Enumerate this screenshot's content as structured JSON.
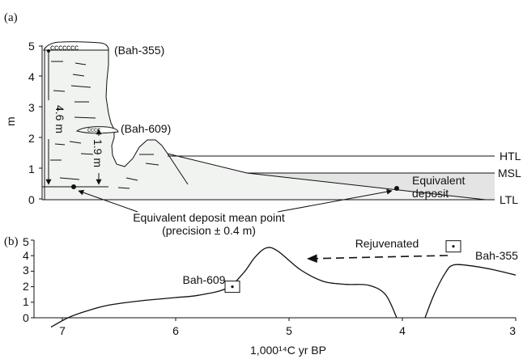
{
  "panel_a": {
    "label": "(a)",
    "y_unit": "m",
    "y_ticks": [
      "0",
      "1",
      "2",
      "3",
      "4",
      "5"
    ],
    "sample_top": "(Bah-355)",
    "sample_mid": "(Bah-609)",
    "measure_long": "4.6 m",
    "measure_short": "1.9 m",
    "levels": {
      "htl": "HTL",
      "msl": "MSL",
      "ltl": "LTL"
    },
    "equivalent_deposit_line1": "Equivalent",
    "equivalent_deposit_line2": "deposit",
    "mean_point_line1": "Equivalent deposit mean point",
    "mean_point_line2": "(precision ± 0.4 m)"
  },
  "panel_b": {
    "label": "(b)",
    "x_ticks": [
      "7",
      "6",
      "5",
      "4",
      "3"
    ],
    "y_ticks": [
      "0",
      "1",
      "2",
      "3",
      "4",
      "5"
    ],
    "x_label": "1,000¹⁴C yr BP",
    "sample_a": "Bah-609",
    "sample_b": "Bah-355",
    "arrow_label": "Rejuvenated"
  },
  "chart_data": {
    "type": "line",
    "xlabel": "1,000¹⁴C yr BP",
    "ylabel": "",
    "xlim": [
      7.2,
      3.0
    ],
    "ylim": [
      0,
      5
    ],
    "x_ticks": [
      7,
      6,
      5,
      4,
      3
    ],
    "y_ticks": [
      0,
      1,
      2,
      3,
      4,
      5
    ],
    "series": [
      {
        "values_xy": [
          [
            7.1,
            -0.6
          ],
          [
            6.95,
            0.0
          ],
          [
            6.8,
            0.4
          ],
          [
            6.6,
            0.8
          ],
          [
            6.3,
            1.1
          ],
          [
            6.0,
            1.3
          ],
          [
            5.8,
            1.45
          ],
          [
            5.55,
            1.9
          ],
          [
            5.4,
            2.9
          ],
          [
            5.3,
            3.9
          ],
          [
            5.2,
            4.5
          ],
          [
            5.1,
            4.3
          ],
          [
            4.9,
            3.1
          ],
          [
            4.7,
            2.35
          ],
          [
            4.5,
            2.15
          ],
          [
            4.3,
            2.1
          ],
          [
            4.15,
            1.5
          ],
          [
            4.05,
            0.0
          ]
        ]
      },
      {
        "values_xy": [
          [
            3.8,
            0.0
          ],
          [
            3.72,
            1.5
          ],
          [
            3.62,
            2.9
          ],
          [
            3.55,
            3.4
          ],
          [
            3.4,
            3.35
          ],
          [
            3.2,
            3.1
          ],
          [
            3.0,
            2.75
          ]
        ]
      }
    ],
    "points": [
      {
        "name": "Bah-609",
        "x": 5.5,
        "y": 2.0
      },
      {
        "name": "Bah-355",
        "x": 3.55,
        "y": 4.6
      }
    ]
  }
}
